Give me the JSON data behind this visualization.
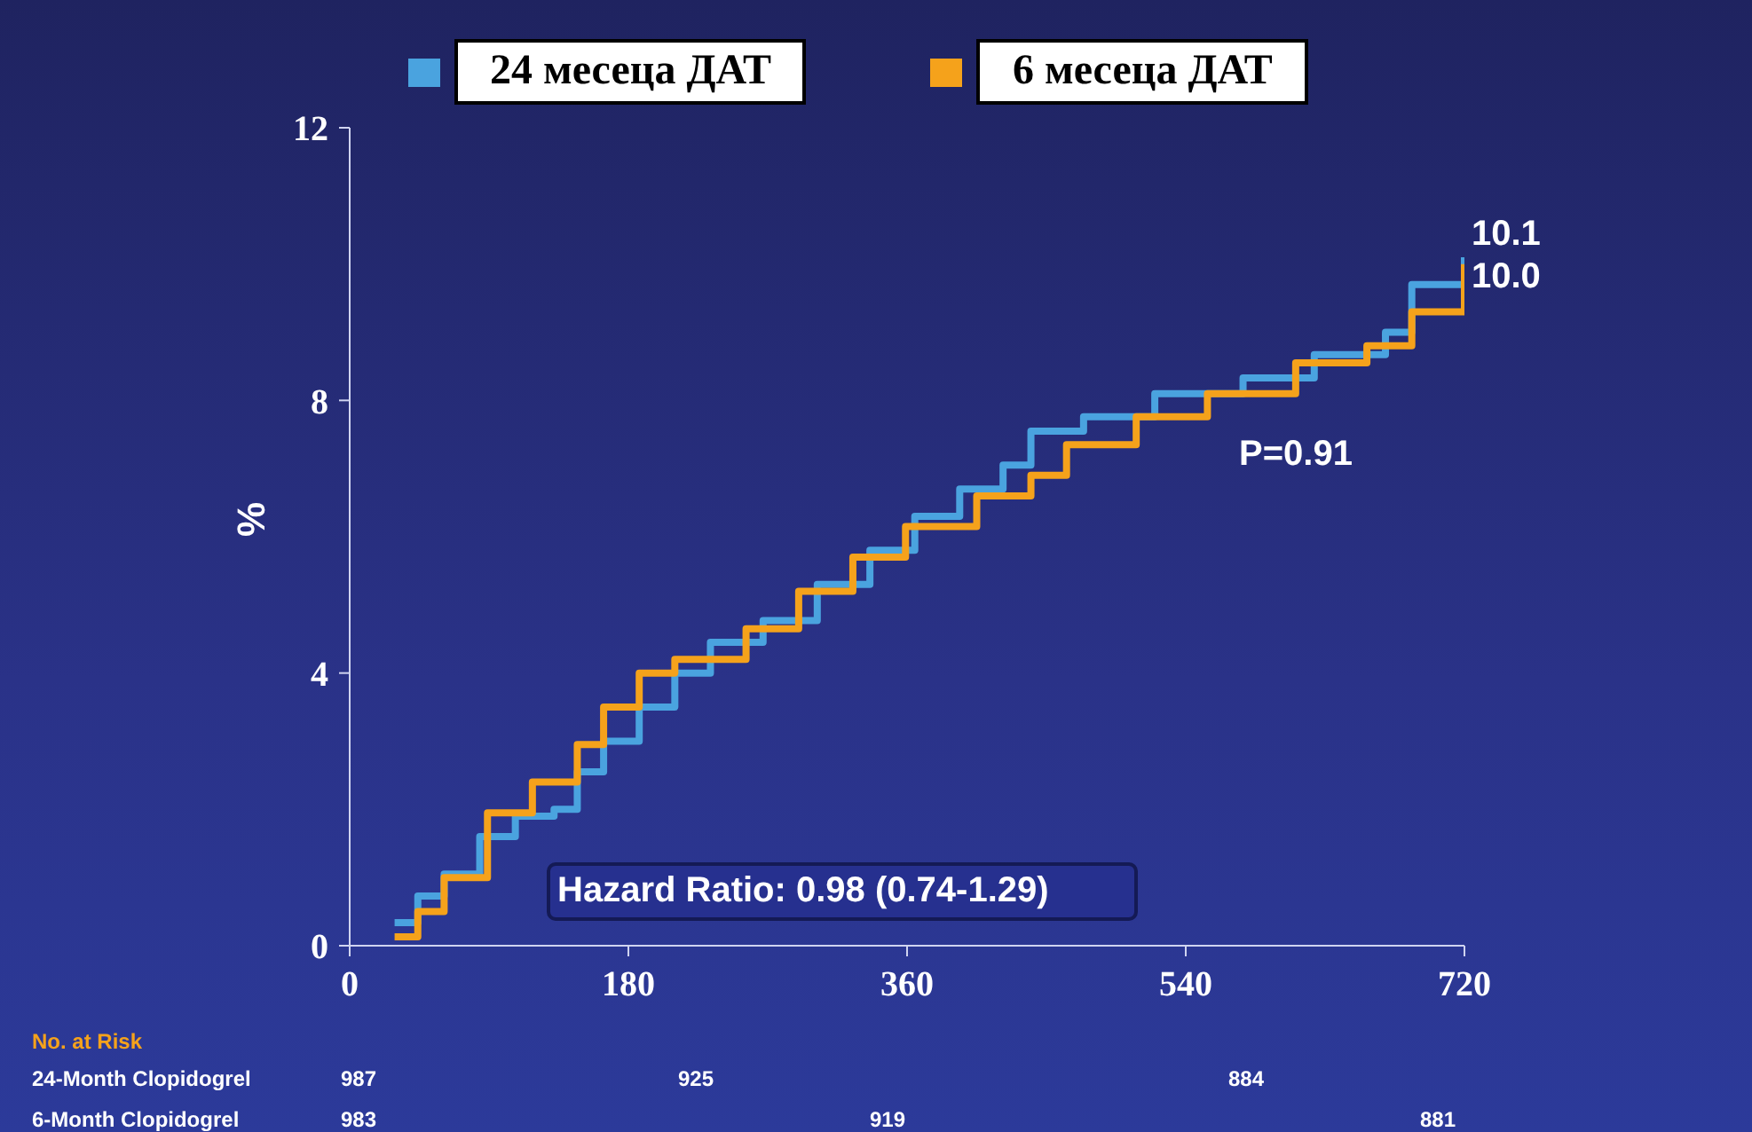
{
  "chart_data": {
    "type": "step",
    "ylabel": "%",
    "legend": "top",
    "xlim": [
      0,
      720
    ],
    "xticks": [
      0,
      180,
      360,
      540,
      720
    ],
    "ylim": [
      0,
      12
    ],
    "yticks": [
      0,
      4,
      8,
      12
    ],
    "marker": "none",
    "line_style": "solid",
    "series": [
      {
        "name": "24 месеца ДАТ",
        "color": "#4aa3df",
        "x": [
          29,
          44,
          61,
          84,
          107,
          132,
          147,
          164,
          187,
          210,
          233,
          267,
          302,
          336,
          365,
          394,
          422,
          440,
          474,
          520,
          577,
          623,
          669,
          686,
          720
        ],
        "values": [
          0.34,
          0.73,
          1.05,
          1.6,
          1.9,
          2.0,
          2.55,
          3.0,
          3.5,
          4.0,
          4.45,
          4.77,
          5.3,
          5.8,
          6.3,
          6.7,
          7.05,
          7.55,
          7.76,
          8.1,
          8.33,
          8.67,
          9.0,
          9.7,
          10.1
        ]
      },
      {
        "name": "6 месеца ДАТ",
        "color": "#f5a21b",
        "x": [
          29,
          44,
          61,
          89,
          118,
          147,
          164,
          187,
          210,
          256,
          290,
          325,
          359,
          405,
          440,
          463,
          508,
          554,
          611,
          657,
          686,
          720
        ],
        "values": [
          0.13,
          0.5,
          1.0,
          1.95,
          2.4,
          2.95,
          3.5,
          4.0,
          4.2,
          4.65,
          5.2,
          5.7,
          6.15,
          6.6,
          6.9,
          7.35,
          7.76,
          8.1,
          8.55,
          8.8,
          9.3,
          10.0
        ]
      }
    ],
    "annotations": [
      {
        "text": "10.1",
        "x": 720,
        "y": 10.1
      },
      {
        "text": "10.0",
        "x": 720,
        "y": 10.0
      },
      "P=0.91",
      "Hazard Ratio: 0.98 (0.74-1.29)",
      "No. at Risk",
      "24-Month Clopidogrel",
      "987",
      "925",
      "884",
      "6-Month Clopidogrel",
      "983",
      "919",
      "881"
    ]
  }
}
